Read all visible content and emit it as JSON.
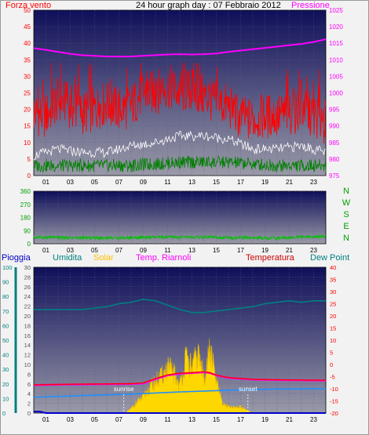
{
  "header": {
    "left_label": "Forza vento",
    "title": "24 hour graph day : 07 Febbraio 2012",
    "right_label": "Pressione"
  },
  "x_ticks": [
    "01",
    "03",
    "05",
    "07",
    "09",
    "11",
    "13",
    "15",
    "17",
    "19",
    "21",
    "23"
  ],
  "direction_labels": [
    "N",
    "W",
    "S",
    "E",
    "N"
  ],
  "bottom_legend": {
    "rain": "Pioggia",
    "humidity": "Umidita",
    "solar": "Solar",
    "temp_riarnoli": "Temp. Riarnoli",
    "temperature": "Temperatura",
    "dew_point": "Dew Point"
  },
  "annotations": {
    "sunrise": "sunrise",
    "sunset": "sunset"
  },
  "colors": {
    "wind_speed": "#ff0000",
    "wind_avg": "#ffffff",
    "wind_low": "#008000",
    "pressure": "#ff00ff",
    "direction": "#00c000",
    "humidity": "#008080",
    "solar": "#ffd700",
    "temp_riarnoli": "#ff00ff",
    "temperature": "#ff0000",
    "dew_point": "#1e90ff",
    "rain": "#0000cc",
    "plot_top": "#0f0f5a",
    "plot_bottom": "#9a9aa8"
  },
  "chart_data": [
    {
      "type": "line",
      "title": "24 hour graph day : 07 Febbraio 2012",
      "y_left": {
        "label": "Forza vento",
        "range": [
          0,
          50
        ],
        "ticks": [
          0,
          5,
          10,
          15,
          20,
          25,
          30,
          35,
          40,
          45,
          50
        ]
      },
      "y_right": {
        "label": "Pressione",
        "range": [
          975,
          1025
        ],
        "ticks": [
          975,
          980,
          985,
          990,
          995,
          1000,
          1005,
          1010,
          1015,
          1020,
          1025
        ]
      },
      "x_range": [
        0,
        24
      ],
      "series": [
        {
          "name": "Forza vento",
          "axis": "left",
          "x": [
            0,
            1,
            2,
            3,
            4,
            5,
            6,
            7,
            8,
            9,
            10,
            11,
            12,
            13,
            14,
            15,
            16,
            17,
            18,
            19,
            20,
            21,
            22,
            23,
            24
          ],
          "values": [
            18,
            17,
            22,
            20,
            18,
            19,
            21,
            19,
            20,
            24,
            24,
            26,
            24,
            25,
            23,
            21,
            20,
            16,
            16,
            17,
            17,
            18,
            19,
            17,
            15
          ]
        },
        {
          "axis": "left",
          "x": [
            0,
            2,
            4,
            6,
            8,
            10,
            12,
            14,
            16,
            18,
            20,
            22,
            24
          ],
          "values": [
            6,
            8,
            7,
            7,
            9,
            10,
            12,
            12,
            11,
            8,
            8,
            9,
            7
          ]
        },
        {
          "axis": "left",
          "x": [
            0,
            4,
            8,
            12,
            16,
            20,
            24
          ],
          "values": [
            3,
            3,
            3,
            4,
            4,
            3,
            3
          ]
        },
        {
          "name": "Pressione",
          "axis": "right",
          "x": [
            0,
            1,
            2,
            3,
            4,
            5,
            6,
            7,
            8,
            9,
            10,
            11,
            12,
            13,
            14,
            15,
            16,
            17,
            18,
            19,
            20,
            21,
            22,
            23,
            24
          ],
          "values": [
            1013.5,
            1013,
            1012.4,
            1011.8,
            1011.4,
            1011.2,
            1011,
            1011,
            1011,
            1011.2,
            1011.4,
            1011.6,
            1011.7,
            1011.6,
            1011.7,
            1011.9,
            1012.4,
            1012.8,
            1013.2,
            1013.6,
            1014,
            1014.4,
            1014.8,
            1015.4,
            1016.2
          ]
        }
      ]
    },
    {
      "type": "line",
      "y_left": {
        "range": [
          0,
          360
        ],
        "ticks": [
          0,
          90,
          180,
          270,
          360
        ]
      },
      "x_range": [
        0,
        24
      ],
      "series": [
        {
          "x": [
            0,
            4,
            8,
            12,
            16,
            20,
            24
          ],
          "values": [
            45,
            40,
            42,
            45,
            42,
            40,
            50
          ]
        }
      ]
    },
    {
      "type": "line",
      "axes": {
        "rain": {
          "label": "Pioggia",
          "range": [
            0,
            100
          ],
          "ticks": [
            0,
            10,
            20,
            30,
            40,
            50,
            60,
            70,
            80,
            90,
            100
          ]
        },
        "solar": {
          "label": "Solar",
          "range": [
            0,
            30
          ],
          "ticks": [
            0,
            2,
            4,
            6,
            8,
            10,
            12,
            14,
            16,
            18,
            20,
            22,
            24,
            26,
            28,
            30
          ]
        },
        "temperature": {
          "label": "Temperatura",
          "range": [
            -20,
            40
          ],
          "ticks": [
            -20,
            -15,
            -10,
            -5,
            0,
            5,
            10,
            15,
            20,
            25,
            30,
            35,
            40
          ]
        }
      },
      "x_range": [
        0,
        24
      ],
      "series": [
        {
          "name": "Umidita",
          "axis": "rain",
          "x": [
            0,
            1,
            2,
            3,
            4,
            5,
            6,
            7,
            8,
            9,
            10,
            11,
            12,
            13,
            14,
            15,
            16,
            17,
            18,
            19,
            20,
            21,
            22,
            23,
            24
          ],
          "values": [
            71,
            71,
            71,
            71,
            71,
            72,
            73,
            75,
            76,
            78,
            77,
            74,
            71,
            69,
            69,
            70,
            71,
            72,
            73,
            75,
            76,
            77,
            76,
            77,
            77
          ]
        },
        {
          "name": "Solar",
          "axis": "solar",
          "x": [
            7.5,
            8,
            8.5,
            9,
            9.5,
            10,
            10.5,
            11,
            11.5,
            12,
            12.5,
            13,
            13.5,
            14,
            14.5,
            15,
            15.5,
            16,
            16.5,
            17,
            17.5,
            18
          ],
          "values": [
            0,
            1,
            2.5,
            3.5,
            5.5,
            7,
            8,
            10,
            9,
            6,
            12,
            10,
            13,
            8,
            14,
            7,
            2,
            1.5,
            1.2,
            1.4,
            0.6,
            0
          ]
        },
        {
          "name": "Temp. Riarnoli",
          "axis": "temperature",
          "x": [
            0,
            2,
            4,
            6,
            8,
            9,
            10,
            11,
            12,
            13,
            14,
            14.5,
            15,
            16,
            18,
            20,
            22,
            24
          ],
          "values": [
            -8.5,
            -8.3,
            -8.2,
            -8.1,
            -8,
            -7.8,
            -6,
            -4.5,
            -3.8,
            -3.5,
            -3.2,
            -3.5,
            -4.5,
            -5.5,
            -6.2,
            -6.4,
            -6.5,
            -6.6
          ]
        },
        {
          "name": "Temperatura",
          "axis": "temperature",
          "x": [
            0,
            2,
            4,
            6,
            8,
            9,
            10,
            11,
            12,
            13,
            14,
            14.5,
            15,
            16,
            18,
            20,
            22,
            24
          ],
          "values": [
            -8.4,
            -8.2,
            -8.1,
            -8,
            -7.9,
            -7.6,
            -5.8,
            -4.3,
            -3.6,
            -3.4,
            -3,
            -3.4,
            -4.4,
            -5.4,
            -6.1,
            -6.3,
            -6.4,
            -6.5
          ]
        },
        {
          "name": "Dew Point",
          "axis": "temperature",
          "x": [
            0,
            4,
            8,
            12,
            16,
            20,
            24
          ],
          "values": [
            -13.5,
            -12.8,
            -12.2,
            -11.3,
            -10.6,
            -10.1,
            -10
          ]
        },
        {
          "name": "Pioggia",
          "axis": "rain",
          "x": [
            0,
            0.5,
            1,
            24
          ],
          "values": [
            1,
            1,
            0,
            0
          ]
        }
      ],
      "markers": [
        {
          "label": "sunrise",
          "x": 7.4
        },
        {
          "label": "sunset",
          "x": 17.6
        }
      ]
    }
  ]
}
